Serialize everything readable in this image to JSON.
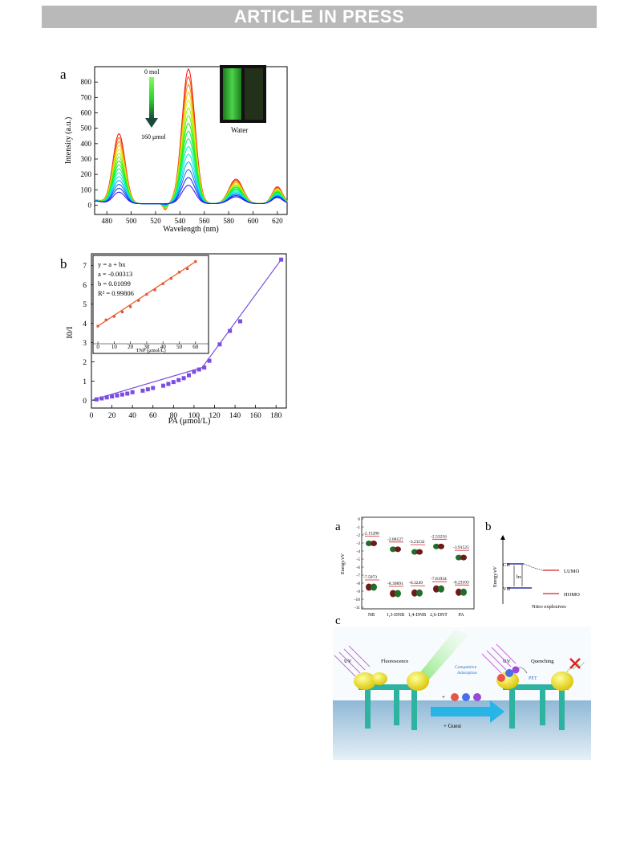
{
  "banner": "ARTICLE IN PRESS",
  "figA": {
    "panel": "a",
    "arrow_top": "0 mol",
    "arrow_bottom": "160 μmol",
    "inset_label": "Water",
    "xlabel": "Wavelength (nm)",
    "ylabel": "Intensity (a.u.)"
  },
  "figB": {
    "panel": "b",
    "xlabel": "PA (μmol/L)",
    "ylabel": "I0/I",
    "inset": {
      "eq": "y = a + bx",
      "a": "a = -0.00313",
      "b": "b = 0.01099",
      "r2": "R² = 0.99806",
      "xlabel": "TNP (μmol/L)"
    }
  },
  "chart_data": [
    {
      "type": "line",
      "xlabel": "Wavelength (nm)",
      "ylabel": "Intensity (a.u.)",
      "xlim": [
        470,
        628
      ],
      "ylim": [
        -60,
        900
      ],
      "xticks": [
        480,
        500,
        520,
        540,
        560,
        580,
        600,
        620
      ],
      "yticks": [
        0,
        100,
        200,
        300,
        400,
        500,
        600,
        700,
        800
      ],
      "peaks": [
        {
          "center": 490,
          "top": 455,
          "bottom": 75
        },
        {
          "center": 547,
          "top": 875,
          "bottom": 120
        },
        {
          "center": 586,
          "top": 160,
          "bottom": 45
        },
        {
          "center": 620,
          "top": 110,
          "bottom": 40
        }
      ],
      "curve_count": 16
    },
    {
      "type": "scatter",
      "xlabel": "PA (μmol/L)",
      "ylabel": "I0/I",
      "xlim": [
        0,
        190
      ],
      "ylim": [
        -0.4,
        7.6
      ],
      "xticks": [
        0,
        20,
        40,
        60,
        80,
        100,
        120,
        140,
        160,
        180
      ],
      "yticks": [
        0,
        1,
        2,
        3,
        4,
        5,
        6,
        7
      ],
      "points": [
        [
          5,
          0.05
        ],
        [
          10,
          0.1
        ],
        [
          15,
          0.15
        ],
        [
          20,
          0.2
        ],
        [
          25,
          0.25
        ],
        [
          30,
          0.3
        ],
        [
          35,
          0.35
        ],
        [
          40,
          0.42
        ],
        [
          50,
          0.5
        ],
        [
          55,
          0.57
        ],
        [
          60,
          0.64
        ],
        [
          70,
          0.76
        ],
        [
          75,
          0.85
        ],
        [
          80,
          0.95
        ],
        [
          85,
          1.05
        ],
        [
          90,
          1.15
        ],
        [
          95,
          1.3
        ],
        [
          100,
          1.48
        ],
        [
          105,
          1.6
        ],
        [
          110,
          1.7
        ],
        [
          115,
          2.05
        ],
        [
          125,
          2.9
        ],
        [
          135,
          3.6
        ],
        [
          145,
          4.1
        ],
        [
          185,
          7.3
        ]
      ],
      "fit_line": [
        [
          0,
          0
        ],
        [
          108,
          1.7
        ],
        [
          185,
          7.3
        ]
      ]
    },
    {
      "type": "scatter",
      "xlabel": "TNP (μmol/L)",
      "xlim": [
        -3,
        68
      ],
      "ylim": [
        2.5,
        7.5
      ],
      "xticks": [
        0,
        10,
        20,
        30,
        40,
        50,
        60
      ],
      "yticks": [
        3,
        4,
        5,
        6,
        7
      ],
      "points": [
        [
          0,
          3.5
        ],
        [
          5,
          3.85
        ],
        [
          10,
          4.05
        ],
        [
          15,
          4.3
        ],
        [
          20,
          4.6
        ],
        [
          25,
          4.95
        ],
        [
          30,
          5.3
        ],
        [
          35,
          5.55
        ],
        [
          40,
          5.9
        ],
        [
          45,
          6.2
        ],
        [
          50,
          6.55
        ],
        [
          55,
          6.75
        ],
        [
          60,
          7.15
        ]
      ],
      "fit_line": [
        [
          0,
          3.5
        ],
        [
          60,
          7.15
        ]
      ]
    }
  ],
  "figC": {
    "panel_a": "a",
    "panel_b": "b",
    "panel_c": "c",
    "ylabel": "Energy/eV",
    "yticks": [
      "0",
      "-1",
      "-2",
      "-3",
      "-4",
      "-5",
      "-6",
      "-7",
      "-8",
      "-9",
      "-10",
      "-11"
    ],
    "lumo_values": [
      "-2.15286",
      "-2.88127",
      "-3.21132",
      "-2.53216",
      "-3.91525"
    ],
    "homo_values": [
      "-7.5973",
      "-8.39891",
      "-8.3249",
      "-7.81934",
      "-8.23103"
    ],
    "molecules": [
      "NB",
      "1,3-DNB",
      "1,4-DNB",
      "2,6-DNT",
      "PA"
    ],
    "b_labels": {
      "cb": "CB",
      "vb": "VB",
      "hv": "hν",
      "lumo": "LUMO",
      "homo": "HOMO",
      "axis": "Energy/eV",
      "caption": "Nitro explosives"
    },
    "scheme": {
      "uv1": "UV",
      "fluor": "Fluorescence",
      "uv2": "UV",
      "quench": "Quenching",
      "comp": "Competitive",
      "comp2": "Adsorption",
      "pet": "PET",
      "guest": "+ Guest",
      "plus": "+"
    }
  }
}
